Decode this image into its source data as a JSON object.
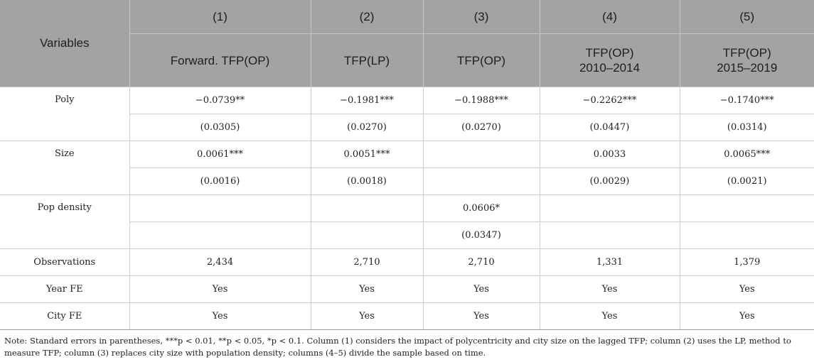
{
  "header": {
    "variables_label": "Variables",
    "columns": [
      {
        "num": "(1)",
        "line1": "Forward. TFP(OP)",
        "line2": ""
      },
      {
        "num": "(2)",
        "line1": "TFP(LP)",
        "line2": ""
      },
      {
        "num": "(3)",
        "line1": "TFP(OP)",
        "line2": ""
      },
      {
        "num": "(4)",
        "line1": "TFP(OP)",
        "line2": "2010–2014"
      },
      {
        "num": "(5)",
        "line1": "TFP(OP)",
        "line2": "2015–2019"
      }
    ]
  },
  "rows": {
    "poly": {
      "label": "Poly",
      "coef": [
        "−0.0739**",
        "−0.1981***",
        "−0.1988***",
        "−0.2262***",
        "−0.1740***"
      ],
      "se": [
        "(0.0305)",
        "(0.0270)",
        "(0.0270)",
        "(0.0447)",
        "(0.0314)"
      ]
    },
    "size": {
      "label": "Size",
      "coef": [
        "0.0061***",
        "0.0051***",
        "",
        "0.0033",
        "0.0065***"
      ],
      "se": [
        "(0.0016)",
        "(0.0018)",
        "",
        "(0.0029)",
        "(0.0021)"
      ]
    },
    "pop_density": {
      "label": "Pop density",
      "coef": [
        "",
        "",
        "0.0606*",
        "",
        ""
      ],
      "se": [
        "",
        "",
        "(0.0347)",
        "",
        ""
      ]
    },
    "observations": {
      "label": "Observations",
      "values": [
        "2,434",
        "2,710",
        "2,710",
        "1,331",
        "1,379"
      ]
    },
    "year_fe": {
      "label": "Year FE",
      "values": [
        "Yes",
        "Yes",
        "Yes",
        "Yes",
        "Yes"
      ]
    },
    "city_fe": {
      "label": "City FE",
      "values": [
        "Yes",
        "Yes",
        "Yes",
        "Yes",
        "Yes"
      ]
    }
  },
  "note": "Note: Standard errors in parentheses, ***p < 0.01, **p < 0.05, *p < 0.1. Column (1) considers the impact of polycentricity and city size on the lagged TFP; column (2) uses the LP, method to measure TFP; column (3) replaces city size with population density; columns (4–5) divide the sample based on time."
}
